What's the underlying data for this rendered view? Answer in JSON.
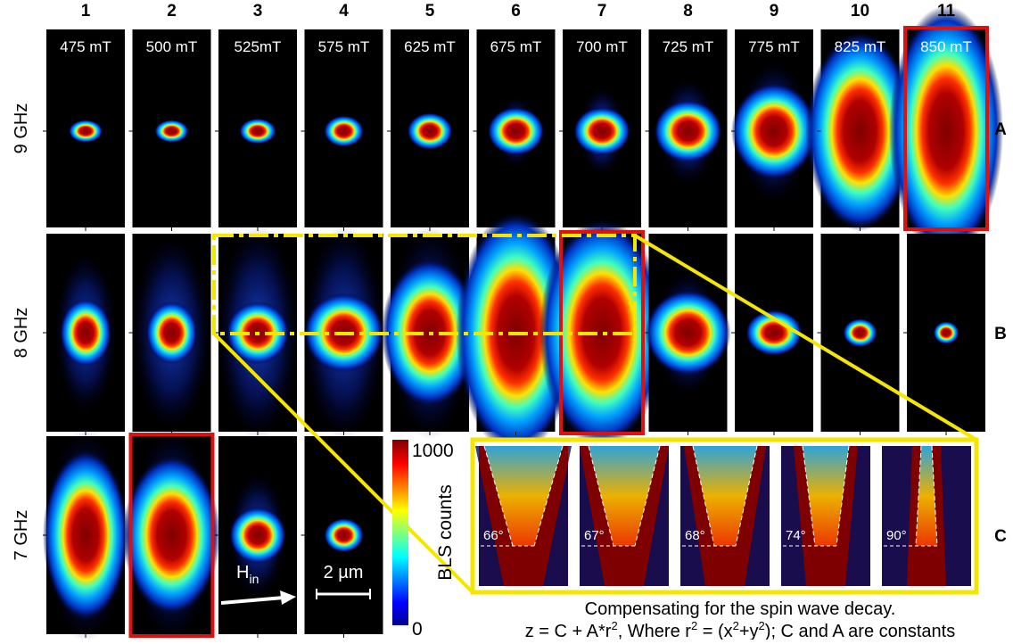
{
  "columns": [
    "1",
    "2",
    "3",
    "4",
    "5",
    "6",
    "7",
    "8",
    "9",
    "10",
    "11"
  ],
  "rows": [
    {
      "label": "9 GHz",
      "letter": "A",
      "fields": [
        "475 mT",
        "500 mT",
        "525mT",
        "575 mT",
        "625 mT",
        "675 mT",
        "700 mT",
        "725 mT",
        "775 mT",
        "825 mT",
        "850 mT"
      ]
    },
    {
      "label": "8 GHz",
      "letter": "B"
    },
    {
      "label": "7 GHz",
      "letter": "C"
    }
  ],
  "colorbar": {
    "label": "BLS counts",
    "max": "1000",
    "min": "0"
  },
  "field_arrow": {
    "label": "H",
    "subscript": "in"
  },
  "scale_bar": "2 µm",
  "angles": [
    "66°",
    "67°",
    "68°",
    "74°",
    "90°"
  ],
  "caption": {
    "line1": "Compensating for the spin wave decay.",
    "line2": [
      "z = C + A*r",
      "2",
      ", Where r",
      "2",
      " = (x",
      "2",
      "+y",
      "2",
      "); C and A are constants"
    ]
  }
}
